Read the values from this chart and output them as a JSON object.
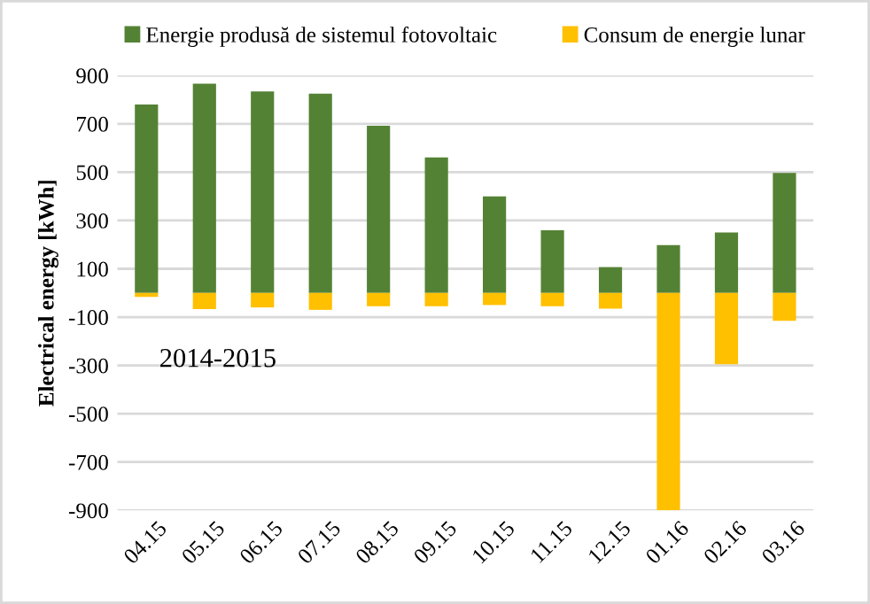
{
  "chart_data": {
    "type": "bar",
    "stacked": true,
    "ylabel": "Electrical energy [kWh]",
    "categories": [
      "04.15",
      "05.15",
      "06.15",
      "07.15",
      "08.15",
      "09.15",
      "10.15",
      "11.15",
      "12.15",
      "01.16",
      "02.16",
      "03.16"
    ],
    "series": [
      {
        "name": "Energie produsă de sistemul fotovoltaic",
        "color": "#548235",
        "values": [
          780,
          866,
          834,
          825,
          692,
          561,
          400,
          259,
          107,
          198,
          250,
          497
        ]
      },
      {
        "name": "Consum de energie lunar",
        "color": "#ffc000",
        "values": [
          -16,
          -67,
          -60,
          -70,
          -55,
          -55,
          -50,
          -55,
          -65,
          -900,
          -295,
          -115
        ]
      }
    ],
    "ylim": [
      -900,
      900
    ],
    "yticks": [
      -900,
      -700,
      -500,
      -300,
      -100,
      100,
      300,
      500,
      700,
      900
    ],
    "grid": "y",
    "legend": "top",
    "annotations": [
      "2014-2015"
    ]
  }
}
